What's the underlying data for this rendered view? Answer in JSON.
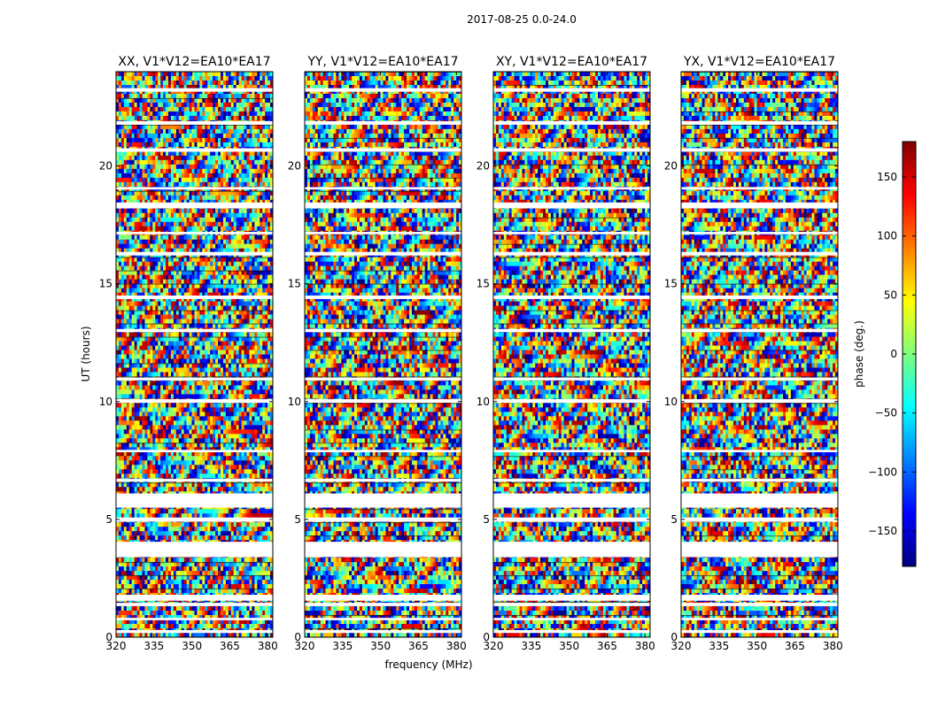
{
  "chart_data": {
    "type": "heatmap",
    "suptitle": "2017-08-25 0.0-24.0",
    "xlabel": "frequency (MHz)",
    "ylabel": "UT (hours)",
    "xlim": [
      320,
      382
    ],
    "ylim": [
      0,
      24
    ],
    "xticks": [
      "320",
      "335",
      "350",
      "365",
      "380"
    ],
    "xtick_values": [
      320,
      335,
      350,
      365,
      380
    ],
    "yticks": [
      "0",
      "5",
      "10",
      "15",
      "20"
    ],
    "ytick_values": [
      0,
      5,
      10,
      15,
      20
    ],
    "panels": [
      {
        "title": "XX, V1*V12=EA10*EA17"
      },
      {
        "title": "YY, V1*V12=EA10*EA17"
      },
      {
        "title": "XY, V1*V12=EA10*EA17"
      },
      {
        "title": "YX, V1*V12=EA10*EA17"
      }
    ],
    "flagged_bands_hours": [
      [
        0.18,
        0.3
      ],
      [
        0.72,
        0.82
      ],
      [
        1.32,
        1.46
      ],
      [
        1.55,
        1.8
      ],
      [
        3.4,
        4.05
      ],
      [
        4.9,
        5.08
      ],
      [
        5.5,
        6.1
      ],
      [
        6.6,
        6.72
      ],
      [
        7.85,
        7.95
      ],
      [
        9.95,
        10.1
      ],
      [
        10.9,
        11.02
      ],
      [
        12.95,
        13.08
      ],
      [
        14.35,
        14.5
      ],
      [
        16.2,
        16.35
      ],
      [
        17.1,
        17.2
      ],
      [
        18.2,
        18.45
      ],
      [
        19.0,
        19.1
      ],
      [
        20.6,
        20.75
      ],
      [
        21.75,
        21.9
      ],
      [
        23.15,
        23.3
      ]
    ],
    "colorbar": {
      "label": "phase (deg.)",
      "range": [
        -180,
        180
      ],
      "ticks": [
        "150",
        "100",
        "50",
        "0",
        "−50",
        "−100",
        "−150"
      ],
      "tick_values": [
        150,
        100,
        50,
        0,
        -50,
        -100,
        -150
      ],
      "colormap": "jet"
    }
  },
  "colors": {
    "axes": "#000000",
    "background": "#ffffff",
    "flagged": "#ffffff"
  }
}
